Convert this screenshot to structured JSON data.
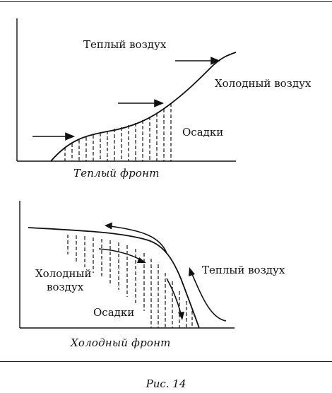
{
  "warm_front": {
    "warm_air_label": "Теплый воздух",
    "cold_air_label": "Холодный воздух",
    "precipitation_label": "Осадки",
    "caption": "Теплый фронт"
  },
  "cold_front": {
    "cold_air_label_line1": "Холодный",
    "cold_air_label_line2": "воздух",
    "warm_air_label": "Теплый воздух",
    "precipitation_label": "Осадки",
    "caption": "Холодный фронт"
  },
  "figure_label": "Рис. 14",
  "colors": {
    "ink": "#111111",
    "background": "#ffffff"
  }
}
